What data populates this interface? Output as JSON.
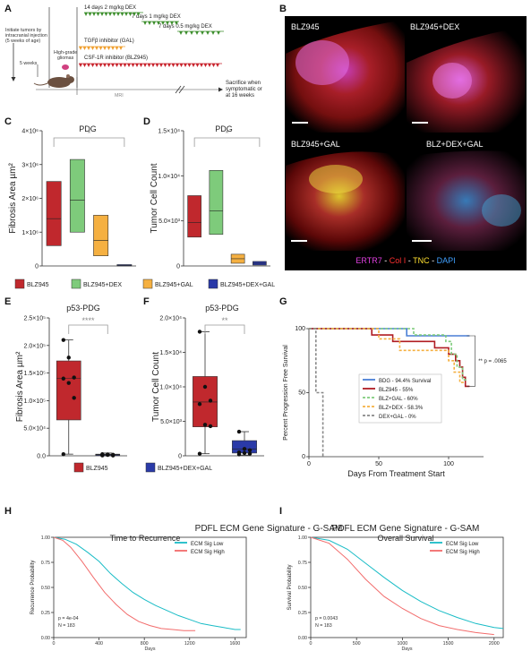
{
  "panel_letters": [
    "A",
    "B",
    "C",
    "D",
    "E",
    "F",
    "G",
    "H",
    "I"
  ],
  "panel_a": {
    "dex_14": "14 days 2 mg/kg DEX",
    "dex_7_1": "7 days 1 mg/kg DEX",
    "dex_7_05": "7 days 0.5 mg/kg DEX",
    "initiate": "Initiate tumors by\nintracranial injection\n(5 weeks of age)",
    "tgfb": "TGFβ inhibitor (GAL)",
    "csf1r": "CSF-1R inhibitor (BLZ945)",
    "high_grade": "High-grade\ngliomas",
    "five_weeks": "5 weeks",
    "mri": "MRI",
    "sacrifice": "Sacrifice when\nsymptomatic or\nat 16 weeks",
    "colors": {
      "dex": "#3e8f2e",
      "gal": "#f0a030",
      "blz": "#c8232c"
    }
  },
  "panel_b": {
    "images": [
      "BLZ945",
      "BLZ945+DEX",
      "BLZ945+GAL",
      "BLZ+DEX+GAL"
    ],
    "legend": [
      {
        "text": "ERTR7",
        "color": "#e040e0"
      },
      {
        "text": " - ",
        "color": "#ffffff"
      },
      {
        "text": "Col I",
        "color": "#ff3030"
      },
      {
        "text": " - ",
        "color": "#ffffff"
      },
      {
        "text": "TNC",
        "color": "#ffe030"
      },
      {
        "text": " - ",
        "color": "#ffffff"
      },
      {
        "text": "DAPI",
        "color": "#40a0ff"
      }
    ]
  },
  "legend_cd": [
    {
      "name": "BLZ945",
      "color": "#c0282d"
    },
    {
      "name": "BLZ945+DEX",
      "color": "#7ecb7b"
    },
    {
      "name": "BLZ945+GAL",
      "color": "#f5b041"
    },
    {
      "name": "BLZ945+DEX+GAL",
      "color": "#2a3aa8"
    }
  ],
  "legend_ef": [
    {
      "name": "BLZ945",
      "color": "#c0282d"
    },
    {
      "name": "BLZ945+DEX+GAL",
      "color": "#2a3aa8"
    }
  ],
  "chart_data": [
    {
      "panel": "C",
      "type": "box",
      "title": "PDG",
      "ylabel": "Fibrosis Area µm²",
      "ylim": [
        0,
        4000000
      ],
      "yticks": [
        "0",
        "1×10⁶",
        "2×10⁶",
        "3×10⁶",
        "4×10⁶"
      ],
      "significance": "*",
      "boxes": [
        {
          "group": "BLZ945",
          "q1": 600000,
          "median": 1400000,
          "q3": 2500000
        },
        {
          "group": "BLZ945+DEX",
          "q1": 1000000,
          "median": 1950000,
          "q3": 3150000
        },
        {
          "group": "BLZ945+GAL",
          "q1": 300000,
          "median": 750000,
          "q3": 1500000
        },
        {
          "group": "BLZ945+DEX+GAL",
          "q1": 0,
          "median": 20000,
          "q3": 40000
        }
      ]
    },
    {
      "panel": "D",
      "type": "box",
      "title": "PDG",
      "ylabel": "Tumor Cell Count",
      "ylim": [
        0,
        15000
      ],
      "yticks": [
        "0",
        "5.0×10³",
        "1.0×10⁴",
        "1.5×10⁴"
      ],
      "significance": "*",
      "boxes": [
        {
          "group": "BLZ945",
          "q1": 3200,
          "median": 4800,
          "q3": 7800
        },
        {
          "group": "BLZ945+DEX",
          "q1": 3500,
          "median": 6100,
          "q3": 10600
        },
        {
          "group": "BLZ945+GAL",
          "q1": 300,
          "median": 800,
          "q3": 1300
        },
        {
          "group": "BLZ945+DEX+GAL",
          "q1": 100,
          "median": 300,
          "q3": 500
        }
      ]
    },
    {
      "panel": "E",
      "type": "box",
      "title": "p53-PDG",
      "ylabel": "Fibrosis Area µm²",
      "ylim": [
        0,
        250000
      ],
      "yticks": [
        "0.0",
        "5.0×10⁴",
        "1.0×10⁵",
        "1.5×10⁵",
        "2.0×10⁵",
        "2.5×10⁵"
      ],
      "significance": "****",
      "boxes": [
        {
          "group": "BLZ945",
          "min": 3000,
          "q1": 65000,
          "median": 140000,
          "q3": 172000,
          "max": 210000,
          "points": [
            210000,
            178000,
            142000,
            140000,
            132000,
            105000,
            3000
          ]
        },
        {
          "group": "BLZ945+DEX+GAL",
          "min": 0,
          "q1": 1000,
          "median": 2000,
          "q3": 3000,
          "max": 5000,
          "points": [
            1000,
            2500,
            500,
            3000,
            1500,
            2000,
            800,
            2200
          ]
        }
      ]
    },
    {
      "panel": "F",
      "type": "box",
      "title": "p53-PDG",
      "ylabel": "Tumor Cell Count",
      "ylim": [
        0,
        20000
      ],
      "yticks": [
        "0",
        "5.0×10³",
        "1.0×10⁴",
        "1.5×10⁴",
        "2.0×10⁴"
      ],
      "significance": "**",
      "boxes": [
        {
          "group": "BLZ945",
          "min": 300,
          "q1": 4200,
          "median": 7800,
          "q3": 11500,
          "max": 18000,
          "points": [
            18000,
            10000,
            8000,
            7500,
            4500,
            4300,
            300
          ]
        },
        {
          "group": "BLZ945+DEX+GAL",
          "min": 100,
          "q1": 400,
          "median": 1000,
          "q3": 2200,
          "max": 3500,
          "points": [
            3500,
            1000,
            800,
            500,
            400,
            300,
            200
          ]
        }
      ]
    },
    {
      "panel": "G",
      "type": "line",
      "xlabel": "Days From Treatment Start",
      "ylabel": "Percent Progression Free Survival",
      "xlim": [
        0,
        125
      ],
      "ylim": [
        0,
        100
      ],
      "xticks": [
        "0",
        "50",
        "100"
      ],
      "yticks": [
        "0",
        "50",
        "100"
      ],
      "annotation": "** p = .0065",
      "series": [
        {
          "name": "BDG - 94.4% Survival",
          "color": "#4a7fd6",
          "dash": "",
          "points": [
            [
              0,
              100
            ],
            [
              70,
              100
            ],
            [
              70,
              94.4
            ],
            [
              115,
              94.4
            ]
          ]
        },
        {
          "name": "BLZ945 - 55%",
          "color": "#b01c22",
          "dash": "",
          "points": [
            [
              0,
              100
            ],
            [
              45,
              100
            ],
            [
              45,
              95
            ],
            [
              60,
              95
            ],
            [
              60,
              90
            ],
            [
              90,
              90
            ],
            [
              90,
              85
            ],
            [
              100,
              85
            ],
            [
              100,
              80
            ],
            [
              105,
              80
            ],
            [
              105,
              75
            ],
            [
              108,
              75
            ],
            [
              108,
              70
            ],
            [
              110,
              70
            ],
            [
              110,
              62
            ],
            [
              112,
              62
            ],
            [
              112,
              55
            ],
            [
              115,
              55
            ]
          ]
        },
        {
          "name": "BLZ+GAL - 60%",
          "color": "#7ecb7b",
          "dash": "3,2",
          "points": [
            [
              0,
              100
            ],
            [
              75,
              100
            ],
            [
              75,
              95
            ],
            [
              98,
              95
            ],
            [
              98,
              90
            ],
            [
              102,
              90
            ],
            [
              102,
              80
            ],
            [
              106,
              80
            ],
            [
              106,
              70
            ],
            [
              110,
              70
            ],
            [
              110,
              60
            ],
            [
              113,
              60
            ]
          ]
        },
        {
          "name": "BLZ+DEX - 58.3%",
          "color": "#f5b041",
          "dash": "3,2",
          "points": [
            [
              0,
              100
            ],
            [
              50,
              100
            ],
            [
              50,
              92
            ],
            [
              65,
              92
            ],
            [
              65,
              83
            ],
            [
              100,
              83
            ],
            [
              100,
              75
            ],
            [
              104,
              75
            ],
            [
              104,
              66
            ],
            [
              108,
              66
            ],
            [
              108,
              58
            ],
            [
              111,
              58
            ]
          ]
        },
        {
          "name": "DEX+GAL - 0%",
          "color": "#888888",
          "dash": "3,2",
          "points": [
            [
              0,
              100
            ],
            [
              5,
              100
            ],
            [
              5,
              50
            ],
            [
              10,
              50
            ],
            [
              10,
              0
            ]
          ]
        }
      ]
    },
    {
      "panel": "H",
      "type": "line",
      "title": "PDFL ECM Gene Signature - G-SAM",
      "subtitle": "Time to Recurrence",
      "xlabel": "Days",
      "ylabel": "Recurrence Probability",
      "xlim": [
        0,
        1700
      ],
      "ylim": [
        0,
        1
      ],
      "xticks": [
        "0",
        "400",
        "800",
        "1200",
        "1600"
      ],
      "yticks": [
        "0.00",
        "0.25",
        "0.50",
        "0.75",
        "1.00"
      ],
      "stats": [
        "p = 4e-04",
        "N = 183"
      ],
      "series": [
        {
          "name": "ECM Sig Low",
          "color": "#19bcc6",
          "points": [
            [
              0,
              1
            ],
            [
              100,
              0.98
            ],
            [
              200,
              0.93
            ],
            [
              300,
              0.85
            ],
            [
              400,
              0.76
            ],
            [
              500,
              0.64
            ],
            [
              600,
              0.54
            ],
            [
              700,
              0.45
            ],
            [
              800,
              0.38
            ],
            [
              900,
              0.32
            ],
            [
              1000,
              0.27
            ],
            [
              1100,
              0.22
            ],
            [
              1200,
              0.18
            ],
            [
              1300,
              0.14
            ],
            [
              1400,
              0.12
            ],
            [
              1500,
              0.1
            ],
            [
              1600,
              0.08
            ],
            [
              1650,
              0.08
            ]
          ]
        },
        {
          "name": "ECM Sig High",
          "color": "#f26c6c",
          "points": [
            [
              0,
              1
            ],
            [
              80,
              0.97
            ],
            [
              150,
              0.9
            ],
            [
              250,
              0.76
            ],
            [
              350,
              0.6
            ],
            [
              450,
              0.45
            ],
            [
              550,
              0.33
            ],
            [
              650,
              0.23
            ],
            [
              750,
              0.16
            ],
            [
              850,
              0.12
            ],
            [
              950,
              0.09
            ],
            [
              1050,
              0.08
            ],
            [
              1150,
              0.07
            ],
            [
              1250,
              0.07
            ]
          ]
        }
      ]
    },
    {
      "panel": "I",
      "type": "line",
      "title": "PDFL ECM Gene Signature - G-SAM",
      "subtitle": "Overall Survival",
      "xlabel": "Days",
      "ylabel": "Survival Probability",
      "xlim": [
        0,
        2100
      ],
      "ylim": [
        0,
        1
      ],
      "xticks": [
        "0",
        "500",
        "1000",
        "1500",
        "2000"
      ],
      "yticks": [
        "0.00",
        "0.25",
        "0.50",
        "0.75",
        "1.00"
      ],
      "stats": [
        "p = 0.0043",
        "N = 183"
      ],
      "series": [
        {
          "name": "ECM Sig Low",
          "color": "#19bcc6",
          "points": [
            [
              0,
              1
            ],
            [
              200,
              0.97
            ],
            [
              400,
              0.88
            ],
            [
              600,
              0.74
            ],
            [
              800,
              0.6
            ],
            [
              1000,
              0.47
            ],
            [
              1200,
              0.36
            ],
            [
              1400,
              0.27
            ],
            [
              1600,
              0.2
            ],
            [
              1800,
              0.14
            ],
            [
              2000,
              0.1
            ],
            [
              2100,
              0.09
            ]
          ]
        },
        {
          "name": "ECM Sig High",
          "color": "#f26c6c",
          "points": [
            [
              0,
              1
            ],
            [
              200,
              0.94
            ],
            [
              400,
              0.78
            ],
            [
              600,
              0.58
            ],
            [
              800,
              0.41
            ],
            [
              1000,
              0.29
            ],
            [
              1200,
              0.19
            ],
            [
              1400,
              0.12
            ],
            [
              1600,
              0.08
            ],
            [
              1800,
              0.05
            ],
            [
              2000,
              0.03
            ]
          ]
        }
      ]
    }
  ]
}
